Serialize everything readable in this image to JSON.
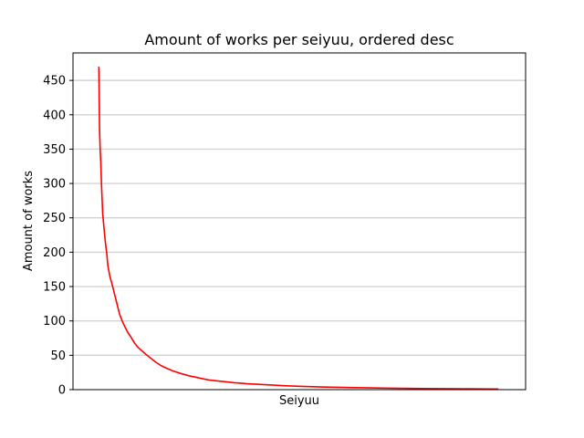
{
  "chart_data": {
    "type": "line",
    "title": "Amount of works per seiyuu, ordered desc",
    "xlabel": "Seiyuu",
    "ylabel": "Amount of works",
    "x_ticks_shown": false,
    "ylim": [
      0,
      490
    ],
    "xlim": [
      -40,
      660
    ],
    "y_ticks": [
      0,
      50,
      100,
      150,
      200,
      250,
      300,
      350,
      400,
      450
    ],
    "grid": {
      "y": true,
      "x": false
    },
    "legend": "none",
    "series": [
      {
        "color": "#ff0000",
        "x": [
          0,
          1,
          2,
          3,
          4,
          6,
          8,
          10,
          12,
          14,
          17,
          20,
          24,
          28,
          32,
          36,
          40,
          45,
          50,
          55,
          60,
          66,
          72,
          80,
          88,
          96,
          105,
          115,
          125,
          140,
          155,
          170,
          190,
          210,
          230,
          260,
          290,
          320,
          350,
          380,
          410,
          440,
          470,
          500,
          530,
          560,
          590,
          610,
          618
        ],
        "y": [
          470,
          380,
          350,
          330,
          300,
          255,
          235,
          215,
          200,
          180,
          165,
          155,
          140,
          125,
          110,
          100,
          92,
          83,
          76,
          68,
          62,
          57,
          52,
          46,
          40,
          35,
          31,
          27,
          24,
          20,
          17,
          14,
          12,
          10,
          8.5,
          7,
          5.5,
          4.5,
          3.8,
          3.2,
          2.7,
          2.2,
          1.9,
          1.6,
          1.4,
          1.2,
          1.1,
          1.0,
          1.0
        ]
      }
    ]
  }
}
